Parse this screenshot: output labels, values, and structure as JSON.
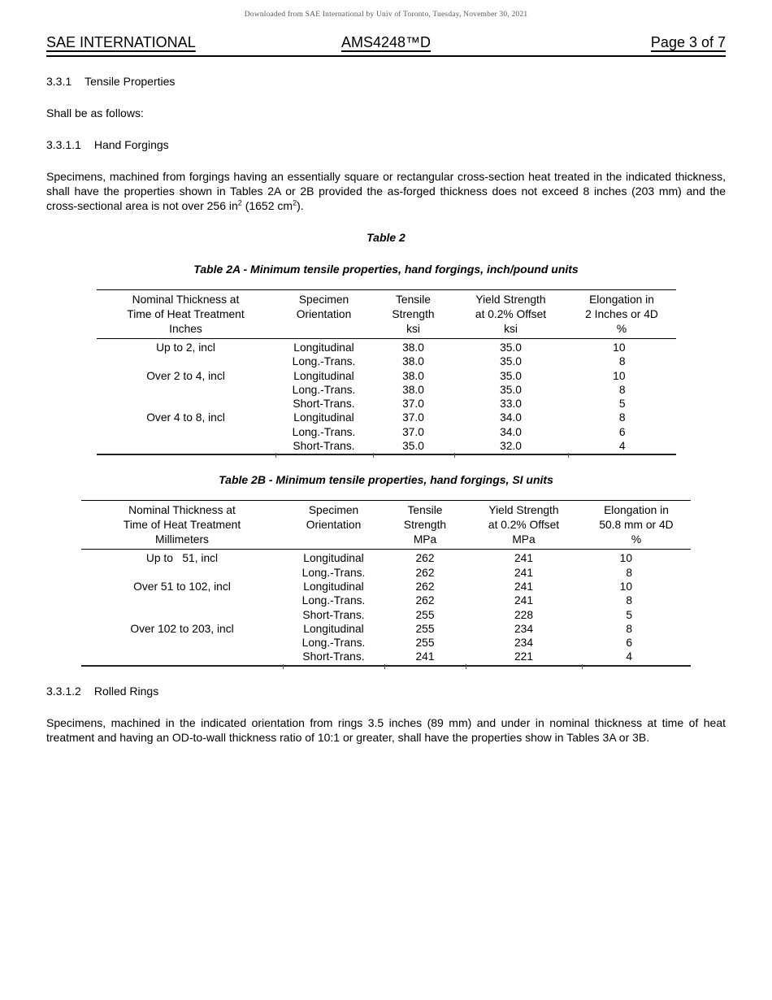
{
  "page": {
    "watermark": "Downloaded from SAE International by Univ of Toronto, Tuesday, November 30, 2021",
    "header": {
      "left": "SAE INTERNATIONAL",
      "center": "AMS4248™D",
      "right": "Page 3 of 7"
    }
  },
  "sections": {
    "s331": {
      "number": "3.3.1",
      "title": "Tensile Properties"
    },
    "s331_intro": "Shall be as follows:",
    "s3311": {
      "number": "3.3.1.1",
      "title": "Hand Forgings"
    },
    "s3311_para": {
      "a": "Specimens, machined from forgings having an essentially square or rectangular cross-section heat treated in the indicated thickness, shall have the properties shown in Tables 2A or 2B provided the as-forged thickness does not exceed 8 inches (203 mm) and the cross-sectional area is not over 256 in",
      "sup1": "2",
      "b": " (1652 cm",
      "sup2": "2",
      "c": ").",
      "full_text": "Specimens, machined from forgings having an essentially square or rectangular cross-section heat treated in the indicated thickness, shall have the properties shown in Tables 2A or 2B provided the as-forged thickness does not exceed 8 inches (203 mm) and the cross-sectional area is not over 256 in2 (1652 cm2)."
    },
    "s3312": {
      "number": "3.3.1.2",
      "title": "Rolled Rings"
    },
    "s3312_para": "Specimens, machined in the indicated orientation from rings 3.5 inches (89 mm) and under in nominal thickness at time of heat treatment and having an OD-to-wall thickness ratio of 10:1 or greater, shall have the properties show in Tables 3A or 3B."
  },
  "table2": {
    "caption": "Table 2"
  },
  "table2a": {
    "caption": "Table 2A - Minimum tensile properties, hand forgings, inch/pound units",
    "headers": [
      [
        "Nominal Thickness at",
        "Time of Heat Treatment",
        "Inches"
      ],
      [
        "Specimen",
        "Orientation"
      ],
      [
        "Tensile",
        "Strength",
        "ksi"
      ],
      [
        "Yield Strength",
        "at 0.2% Offset",
        "ksi"
      ],
      [
        "Elongation in",
        "2 Inches or 4D",
        "%"
      ]
    ],
    "rows": [
      [
        "Up to 2, incl",
        "Longitudinal",
        "38.0",
        "35.0",
        "10"
      ],
      [
        "",
        "Long.-Trans.",
        "38.0",
        "35.0",
        "8"
      ],
      [
        "Over 2 to 4, incl",
        "Longitudinal",
        "38.0",
        "35.0",
        "10"
      ],
      [
        "",
        "Long.-Trans.",
        "38.0",
        "35.0",
        "8"
      ],
      [
        "",
        "Short-Trans.",
        "37.0",
        "33.0",
        "5"
      ],
      [
        "Over 4 to 8, incl",
        "Longitudinal",
        "37.0",
        "34.0",
        "8"
      ],
      [
        "",
        "Long.-Trans.",
        "37.0",
        "34.0",
        "6"
      ],
      [
        "",
        "Short-Trans.",
        "35.0",
        "32.0",
        "4"
      ]
    ]
  },
  "table2b": {
    "caption": "Table 2B - Minimum tensile properties, hand forgings, SI units",
    "headers": [
      [
        "Nominal Thickness at",
        "Time of Heat Treatment",
        "Millimeters"
      ],
      [
        "Specimen",
        "Orientation"
      ],
      [
        "Tensile",
        "Strength",
        "MPa"
      ],
      [
        "Yield Strength",
        "at 0.2% Offset",
        "MPa"
      ],
      [
        "Elongation in",
        "50.8 mm or 4D",
        "%"
      ]
    ],
    "rows": [
      [
        "Up to   51, incl",
        "Longitudinal",
        "262",
        "241",
        "10"
      ],
      [
        "",
        "Long.-Trans.",
        "262",
        "241",
        "8"
      ],
      [
        "Over 51 to 102, incl",
        "Longitudinal",
        "262",
        "241",
        "10"
      ],
      [
        "",
        "Long.-Trans.",
        "262",
        "241",
        "8"
      ],
      [
        "",
        "Short-Trans.",
        "255",
        "228",
        "5"
      ],
      [
        "Over 102 to 203, incl",
        "Longitudinal",
        "255",
        "234",
        "8"
      ],
      [
        "",
        "Long.-Trans.",
        "255",
        "234",
        "6"
      ],
      [
        "",
        "Short-Trans.",
        "241",
        "221",
        "4"
      ]
    ]
  }
}
